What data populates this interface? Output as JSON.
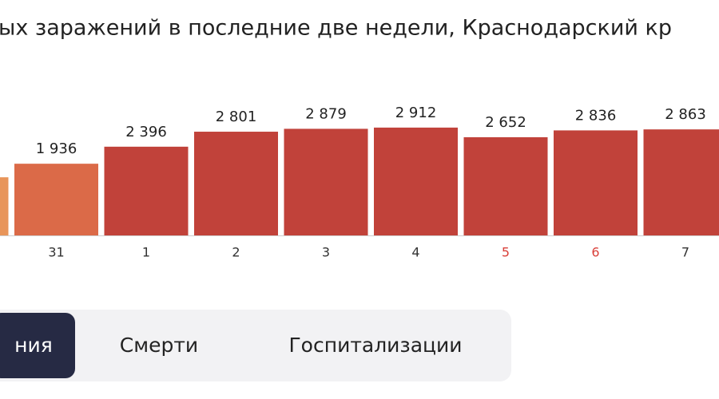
{
  "chart_data": {
    "type": "bar",
    "title": "ых заражений в последние две недели, Краснодарский кр",
    "categories": [
      null,
      "31",
      "1",
      "2",
      "3",
      "4",
      "5",
      "6",
      "7"
    ],
    "category_colors": [
      "#333333",
      "#333333",
      "#333333",
      "#333333",
      "#333333",
      "#333333",
      "#d9403a",
      "#d9403a",
      "#333333"
    ],
    "values": [
      1570,
      1936,
      2396,
      2801,
      2879,
      2912,
      2652,
      2836,
      2863
    ],
    "value_labels": [
      null,
      "1 936",
      "2 396",
      "2 801",
      "2 879",
      "2 912",
      "2 652",
      "2 836",
      "2 863"
    ],
    "colors": [
      "#e8955a",
      "#db6a48",
      "#c1423a",
      "#c1423a",
      "#c1423a",
      "#c1423a",
      "#c1423a",
      "#c1423a",
      "#c1423a"
    ]
  },
  "tabs": [
    {
      "label": "ния",
      "active": true
    },
    {
      "label": "Смерти",
      "active": false
    },
    {
      "label": "Госпитализации",
      "active": false
    }
  ]
}
